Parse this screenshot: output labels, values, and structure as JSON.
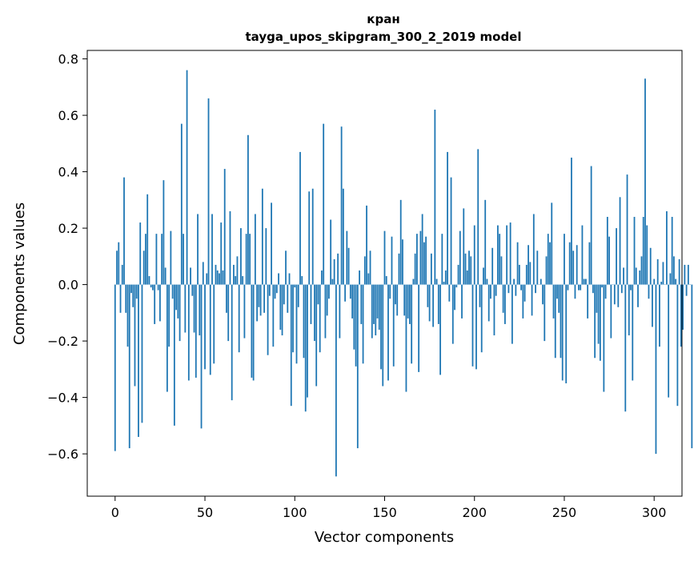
{
  "chart_data": {
    "type": "bar",
    "title": "кран",
    "subtitle": "tayga_upos_skipgram_300_2_2019 model",
    "xlabel": "Vector components",
    "ylabel": "Components values",
    "xlim": [
      -15.5,
      315.5
    ],
    "ylim": [
      -0.75,
      0.83
    ],
    "xticks": [
      0,
      50,
      100,
      150,
      200,
      250,
      300
    ],
    "xtick_labels": [
      "0",
      "50",
      "100",
      "150",
      "200",
      "250",
      "300"
    ],
    "yticks": [
      -0.6,
      -0.4,
      -0.2,
      0.0,
      0.2,
      0.4,
      0.6,
      0.8
    ],
    "ytick_labels": [
      "−0.6",
      "−0.4",
      "−0.2",
      "0.0",
      "0.2",
      "0.4",
      "0.6",
      "0.8"
    ],
    "bar_color": "#1f77b4",
    "grid": false,
    "values": [
      -0.59,
      0.12,
      0.15,
      -0.1,
      0.07,
      0.38,
      -0.1,
      -0.22,
      -0.58,
      -0.03,
      -0.08,
      -0.36,
      -0.05,
      -0.54,
      0.22,
      -0.49,
      0.12,
      0.18,
      0.32,
      0.03,
      -0.01,
      -0.02,
      -0.14,
      0.18,
      -0.02,
      -0.13,
      0.18,
      0.37,
      0.06,
      -0.38,
      -0.22,
      0.19,
      -0.05,
      -0.5,
      -0.09,
      -0.12,
      -0.2,
      0.57,
      0.18,
      -0.17,
      0.76,
      -0.34,
      0.06,
      -0.04,
      -0.17,
      -0.33,
      0.25,
      -0.18,
      -0.51,
      0.08,
      -0.3,
      0.04,
      0.66,
      -0.32,
      0.25,
      -0.28,
      0.07,
      0.05,
      0.04,
      0.22,
      0.05,
      0.41,
      -0.1,
      -0.2,
      0.26,
      -0.41,
      0.07,
      0.03,
      0.1,
      -0.24,
      0.2,
      0.03,
      -0.19,
      0.18,
      0.53,
      0.18,
      -0.33,
      -0.34,
      0.25,
      -0.13,
      -0.08,
      -0.11,
      0.34,
      -0.1,
      0.2,
      -0.25,
      -0.04,
      0.29,
      -0.22,
      -0.05,
      -0.03,
      0.04,
      -0.16,
      -0.18,
      -0.07,
      0.12,
      -0.1,
      0.04,
      -0.43,
      -0.24,
      -0.01,
      -0.28,
      -0.08,
      0.47,
      0.03,
      -0.26,
      -0.45,
      -0.4,
      0.33,
      -0.14,
      0.34,
      -0.2,
      -0.36,
      -0.07,
      -0.24,
      0.05,
      0.57,
      -0.19,
      -0.11,
      -0.05,
      0.23,
      0.02,
      0.09,
      -0.68,
      0.11,
      -0.19,
      0.56,
      0.34,
      -0.06,
      0.19,
      0.13,
      -0.05,
      -0.12,
      -0.23,
      -0.29,
      -0.58,
      0.05,
      -0.14,
      -0.28,
      0.1,
      0.28,
      0.04,
      0.12,
      -0.19,
      -0.14,
      -0.18,
      -0.12,
      -0.16,
      -0.3,
      -0.36,
      0.19,
      0.03,
      -0.34,
      -0.05,
      0.17,
      -0.29,
      -0.07,
      -0.11,
      0.11,
      0.3,
      0.16,
      -0.11,
      -0.38,
      -0.12,
      -0.14,
      -0.28,
      0.02,
      0.11,
      0.18,
      -0.31,
      0.19,
      0.25,
      0.15,
      0.17,
      -0.08,
      -0.13,
      0.11,
      -0.15,
      0.62,
      0.02,
      -0.14,
      -0.32,
      0.18,
      0.01,
      0.05,
      0.47,
      -0.06,
      0.38,
      -0.21,
      -0.09,
      -0.01,
      0.07,
      0.19,
      -0.12,
      0.27,
      0.11,
      0.05,
      0.12,
      0.1,
      -0.29,
      0.21,
      -0.3,
      0.48,
      -0.08,
      -0.24,
      0.06,
      0.3,
      0.02,
      -0.13,
      -0.05,
      0.13,
      -0.18,
      -0.04,
      0.21,
      0.18,
      0.1,
      -0.1,
      -0.14,
      0.21,
      -0.03,
      0.22,
      -0.21,
      0.02,
      -0.04,
      0.15,
      0.07,
      -0.02,
      -0.12,
      -0.06,
      0.07,
      0.14,
      0.08,
      -0.11,
      0.25,
      -0.03,
      0.12,
      0.0,
      0.02,
      -0.07,
      -0.2,
      0.1,
      0.18,
      0.15,
      0.29,
      -0.12,
      -0.26,
      -0.05,
      -0.1,
      -0.26,
      -0.34,
      0.18,
      -0.35,
      -0.02,
      0.15,
      0.45,
      0.12,
      -0.05,
      0.14,
      -0.02,
      -0.02,
      0.21,
      0.02,
      0.02,
      -0.12,
      0.15,
      0.42,
      -0.03,
      -0.26,
      -0.1,
      -0.21,
      -0.27,
      -0.01,
      -0.38,
      -0.05,
      0.24,
      0.17,
      -0.19,
      0.0,
      -0.07,
      0.2,
      -0.08,
      0.31,
      -0.03,
      0.06,
      -0.45,
      0.39,
      -0.18,
      -0.02,
      -0.34,
      0.24,
      0.06,
      -0.08,
      0.05,
      0.1,
      0.24,
      0.73,
      0.21,
      -0.05,
      0.13,
      -0.15,
      0.02,
      -0.6,
      0.09,
      -0.22,
      0.01,
      0.08,
      0.0,
      0.26,
      -0.4,
      0.04,
      0.24,
      0.1,
      0.02,
      -0.43,
      0.09,
      -0.22,
      -0.16,
      0.07,
      -0.04,
      0.07,
      0.0,
      -0.58
    ]
  }
}
